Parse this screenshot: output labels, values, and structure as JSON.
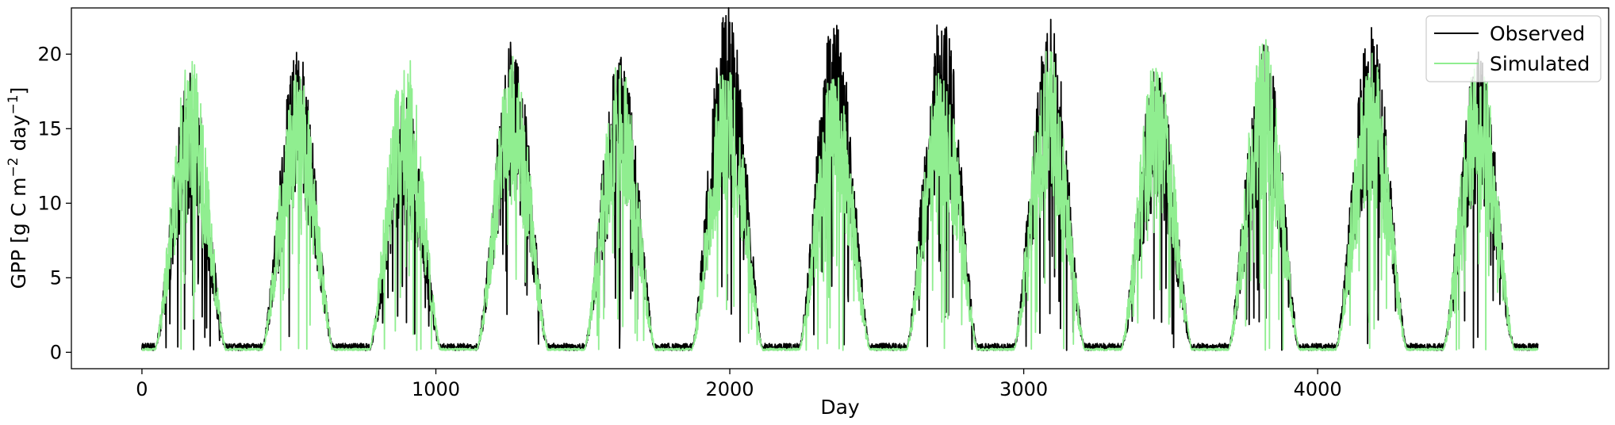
{
  "chart_data": {
    "type": "line",
    "xlabel": "Day",
    "ylabel_main": "GPP [g C m",
    "ylabel_sup1": "−2",
    "ylabel_mid": " day",
    "ylabel_sup2": "−1",
    "ylabel_end": "]",
    "xlim": [
      -240,
      4990
    ],
    "ylim": [
      -1.1,
      23.1
    ],
    "xticks": [
      0,
      1000,
      2000,
      3000,
      4000
    ],
    "yticks": [
      0,
      5,
      10,
      15,
      20
    ],
    "legend_position": "top-right",
    "grid": false,
    "n_days": 4750,
    "season": {
      "period_days": 365.25,
      "peak_day_of_year": 165,
      "growing_season_halfwidth_days": 125,
      "winter_baseline": 0.3
    },
    "annual_peaks": [
      {
        "year": 1,
        "observed_max": 17.5,
        "simulated_max": 18.4
      },
      {
        "year": 2,
        "observed_max": 18.9,
        "simulated_max": 18.1
      },
      {
        "year": 3,
        "observed_max": 16.0,
        "simulated_max": 18.9
      },
      {
        "year": 4,
        "observed_max": 19.6,
        "simulated_max": 18.7
      },
      {
        "year": 5,
        "observed_max": 18.9,
        "simulated_max": 18.3
      },
      {
        "year": 6,
        "observed_max": 22.1,
        "simulated_max": 18.6
      },
      {
        "year": 7,
        "observed_max": 21.0,
        "simulated_max": 18.0
      },
      {
        "year": 8,
        "observed_max": 21.7,
        "simulated_max": 18.3
      },
      {
        "year": 9,
        "observed_max": 20.8,
        "simulated_max": 19.1
      },
      {
        "year": 10,
        "observed_max": 17.8,
        "simulated_max": 18.6
      },
      {
        "year": 11,
        "observed_max": 19.9,
        "simulated_max": 19.6
      },
      {
        "year": 12,
        "observed_max": 20.5,
        "simulated_max": 18.7
      },
      {
        "year": 13,
        "observed_max": 19.0,
        "simulated_max": 19.0
      }
    ],
    "series": [
      {
        "name": "Observed",
        "color": "#000000"
      },
      {
        "name": "Simulated",
        "color": "#90ee90"
      }
    ]
  }
}
